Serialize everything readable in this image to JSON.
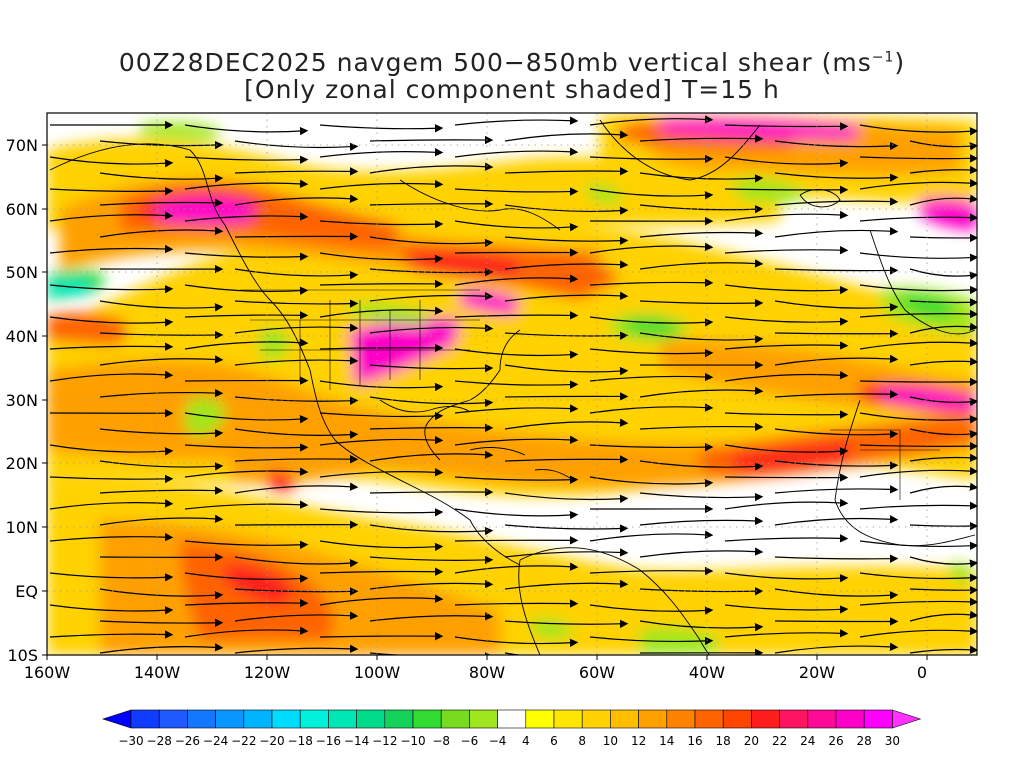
{
  "header": {
    "line1": "00Z28DEC2025 navgem 500−850mb vertical shear (ms",
    "line1_sup": "−1",
    "line1_end": ")",
    "line2": "[Only zonal component shaded] T=15 h"
  },
  "axes": {
    "lat_labels": [
      "70N",
      "60N",
      "50N",
      "40N",
      "30N",
      "20N",
      "10N",
      "EQ",
      "10S"
    ],
    "lon_labels": [
      "160W",
      "140W",
      "120W",
      "100W",
      "80W",
      "60W",
      "40W",
      "20W",
      "0"
    ]
  },
  "colorbar": {
    "labels": [
      "−30",
      "−28",
      "−26",
      "−24",
      "−22",
      "−20",
      "−18",
      "−16",
      "−14",
      "−12",
      "−10",
      "−8",
      "−6",
      "−4",
      "4",
      "6",
      "8",
      "10",
      "12",
      "14",
      "16",
      "18",
      "20",
      "22",
      "24",
      "26",
      "28",
      "30"
    ],
    "colors": [
      "#0000ff",
      "#0f3cff",
      "#1e5aff",
      "#1478ff",
      "#0a96ff",
      "#00b4ff",
      "#00dcff",
      "#00f0dc",
      "#00e6b4",
      "#00dc8c",
      "#14d25a",
      "#32dc32",
      "#78dc1e",
      "#a0e61e",
      "#ffffff",
      "#ffff00",
      "#ffe600",
      "#ffd200",
      "#ffbe00",
      "#ffa000",
      "#ff8200",
      "#ff6400",
      "#ff4600",
      "#ff1e1e",
      "#ff1464",
      "#ff0a96",
      "#ff00c8",
      "#ff00ff",
      "#ff32ff"
    ]
  },
  "shading": {
    "colors": {
      "pos1": "#ffd200",
      "pos2": "#ffa000",
      "pos3": "#ff6400",
      "pos4": "#ff1e1e",
      "pos5": "#ff00c8",
      "neg1": "#a0e61e",
      "neg2": "#32dc32",
      "neg3": "#00e6b4"
    }
  }
}
